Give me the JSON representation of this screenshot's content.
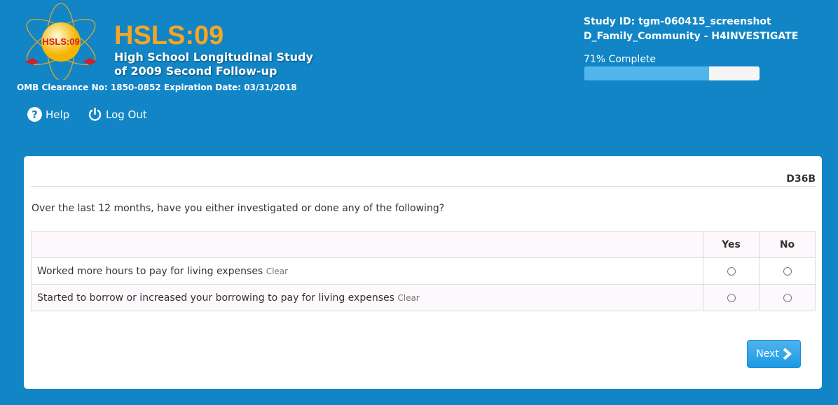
{
  "header": {
    "brand": "HSLS:09",
    "subtitle_line1": "High School Longitudinal Study",
    "subtitle_line2": "of 2009 Second Follow-up",
    "omb": "OMB Clearance No: 1850-0852 Expiration Date: 03/31/2018",
    "logo_text": "HIGH SCHOOL LONGITUDINAL STUDY:2009 HSLS:09 science math"
  },
  "nav": {
    "help": "Help",
    "logout": "Log Out"
  },
  "status": {
    "study_id": "Study ID: tgm-060415_screenshot",
    "section": "D_Family_Community - H4INVESTIGATE",
    "progress_label": "71% Complete",
    "progress_percent": 71
  },
  "question": {
    "code": "D36B",
    "text": "Over the last 12 months, have you either investigated or done any of the following?",
    "columns": [
      "Yes",
      "No"
    ],
    "rows": [
      {
        "label": "Worked more hours to pay for living expenses",
        "clear": "Clear"
      },
      {
        "label": "Started to borrow or increased your borrowing to pay for living expenses",
        "clear": "Clear"
      }
    ]
  },
  "buttons": {
    "next": "Next"
  },
  "colors": {
    "background": "#1185c6",
    "brand": "#f5a623",
    "progress": "#52b5ec"
  }
}
